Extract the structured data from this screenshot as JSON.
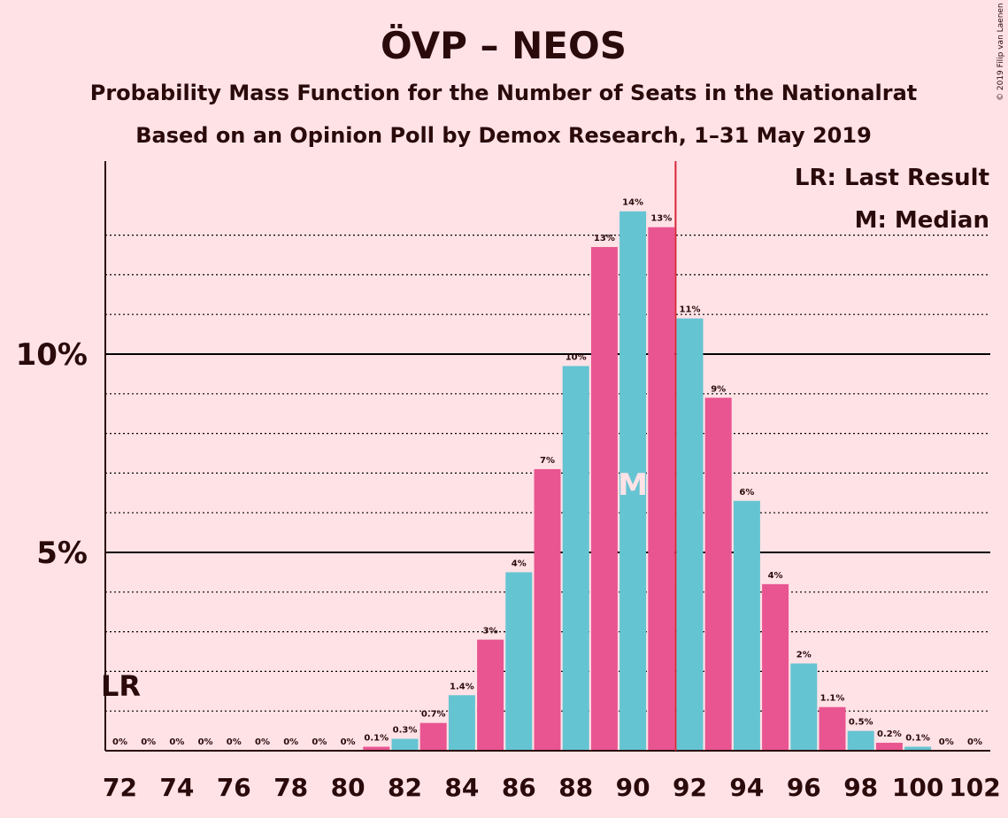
{
  "chart_data": {
    "type": "bar",
    "title": "ÖVP – NEOS",
    "subtitle1": "Probability Mass Function for the Number of Seats in the Nationalrat",
    "subtitle2": "Based on an Opinion Poll by Demox Research, 1–31 May 2019",
    "copyright": "© 2019 Filip van Laenen",
    "x": [
      72,
      73,
      74,
      75,
      76,
      77,
      78,
      79,
      80,
      81,
      82,
      83,
      84,
      85,
      86,
      87,
      88,
      89,
      90,
      91,
      92,
      93,
      94,
      95,
      96,
      97,
      98,
      99,
      100,
      101,
      102
    ],
    "values": [
      0,
      0,
      0,
      0,
      0,
      0,
      0,
      0,
      0,
      0.1,
      0.3,
      0.7,
      1.4,
      2.8,
      4.5,
      7.1,
      9.7,
      12.7,
      13.6,
      13.2,
      10.9,
      8.9,
      6.3,
      4.2,
      2.2,
      1.1,
      0.5,
      0.2,
      0.1,
      0,
      0
    ],
    "labels": [
      "0%",
      "0%",
      "0%",
      "0%",
      "0%",
      "0%",
      "0%",
      "0%",
      "0%",
      "0.1%",
      "0.3%",
      "0.7%",
      "1.4%",
      "3%",
      "4%",
      "7%",
      "10%",
      "13%",
      "14%",
      "13%",
      "11%",
      "9%",
      "6%",
      "4%",
      "2%",
      "1.1%",
      "0.5%",
      "0.2%",
      "0.1%",
      "0%",
      "0%"
    ],
    "xticks": [
      72,
      74,
      76,
      78,
      80,
      82,
      84,
      86,
      88,
      90,
      92,
      94,
      96,
      98,
      100,
      102
    ],
    "yticks": [
      {
        "value": 5,
        "label": "5%"
      },
      {
        "value": 10,
        "label": "10%"
      }
    ],
    "ylim": [
      0,
      14.8
    ],
    "last_result": 92,
    "last_result_label": "LR",
    "median": 90,
    "median_label": "M",
    "legend": [
      "LR: Last Result",
      "M: Median"
    ],
    "colors": {
      "pink": "#E85591",
      "cyan": "#65C4D2",
      "background": "#FFE2E6",
      "lr_line": "#D8263B",
      "text": "#2a0a0a"
    }
  }
}
